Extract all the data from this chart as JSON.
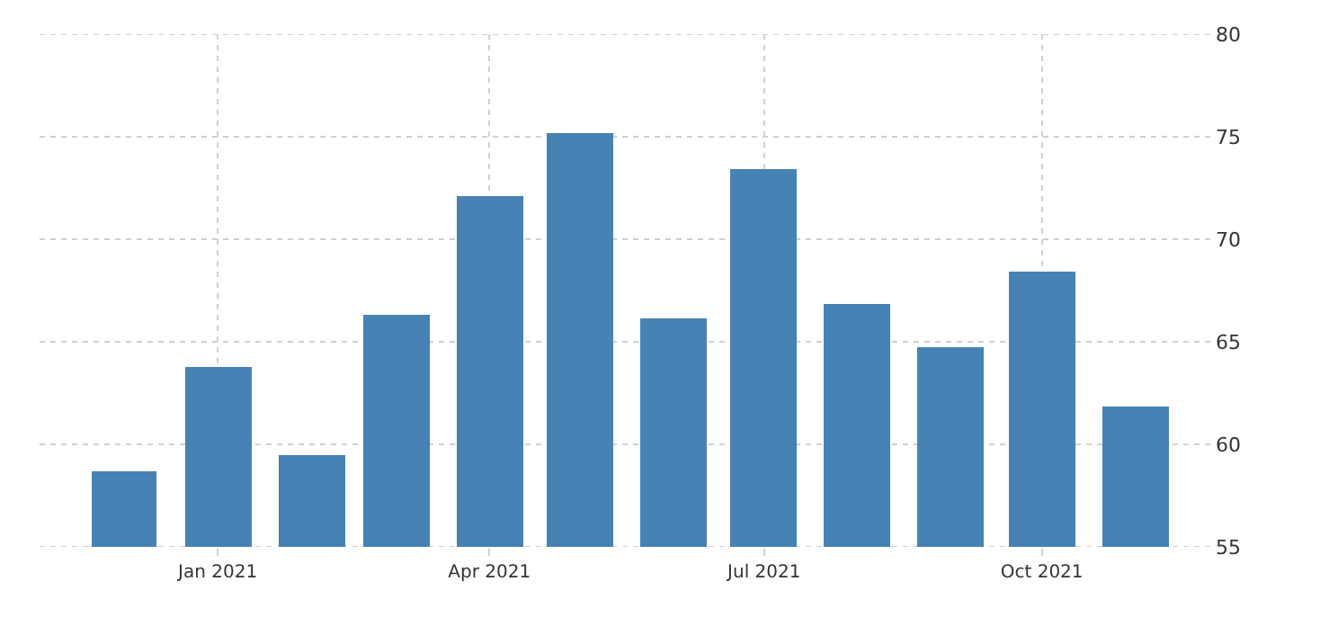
{
  "chart_data": {
    "type": "bar",
    "x": [
      "2020-12",
      "2021-01",
      "2021-02",
      "2021-03",
      "2021-04",
      "2021-05",
      "2021-06",
      "2021-07",
      "2021-08",
      "2021-09",
      "2021-10",
      "2021-11"
    ],
    "values": [
      58.7,
      63.8,
      59.5,
      66.3,
      72.1,
      75.2,
      66.1,
      73.4,
      66.8,
      64.7,
      68.4,
      61.8
    ],
    "color": "#4682b4",
    "xlim": [
      "2020-11-03",
      "2021-11-27"
    ],
    "xticks": [
      {
        "value": "2021-01",
        "label": "Jan 2021"
      },
      {
        "value": "2021-04",
        "label": "Apr 2021"
      },
      {
        "value": "2021-07",
        "label": "Jul 2021"
      },
      {
        "value": "2021-10",
        "label": "Oct 2021"
      }
    ],
    "ylim": [
      55,
      80
    ],
    "yticks": [
      55,
      60,
      65,
      70,
      75,
      80
    ],
    "grid": true
  }
}
